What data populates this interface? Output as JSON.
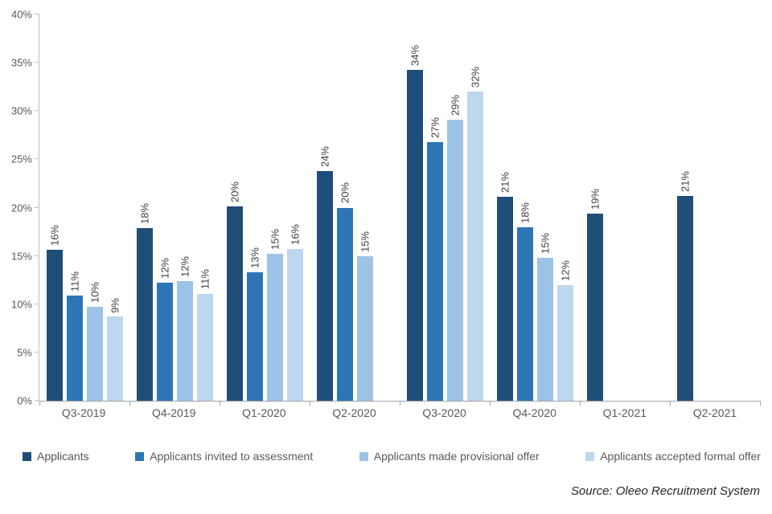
{
  "chart_data": {
    "type": "bar",
    "title": "",
    "categories": [
      "Q3-2019",
      "Q4-2019",
      "Q1-2020",
      "Q2-2020",
      "Q3-2020",
      "Q4-2020",
      "Q1-2021",
      "Q2-2021"
    ],
    "series": [
      {
        "name": "Applicants",
        "color": "#1F4E79",
        "values": [
          15.6,
          17.9,
          20.1,
          23.8,
          34.3,
          21.1,
          19.4,
          21.2
        ],
        "labels": [
          "16%",
          "18%",
          "20%",
          "24%",
          "34%",
          "21%",
          "19%",
          "21%"
        ]
      },
      {
        "name": "Applicants invited to assessment",
        "color": "#2E75B6",
        "values": [
          10.9,
          12.2,
          13.3,
          20.0,
          26.8,
          18.0,
          null,
          null
        ],
        "labels": [
          "11%",
          "12%",
          "13%",
          "20%",
          "27%",
          "18%",
          "",
          ""
        ]
      },
      {
        "name": "Applicants made provisional offer",
        "color": "#9DC3E6",
        "values": [
          9.7,
          12.4,
          15.2,
          15.0,
          29.1,
          14.8,
          null,
          null
        ],
        "labels": [
          "10%",
          "12%",
          "15%",
          "15%",
          "29%",
          "15%",
          "",
          ""
        ]
      },
      {
        "name": "Applicants accepted formal offer",
        "color": "#BDD7EE",
        "values": [
          8.7,
          11.1,
          15.7,
          null,
          32.0,
          12.0,
          null,
          null
        ],
        "labels": [
          "9%",
          "11%",
          "16%",
          "",
          "32%",
          "12%",
          "",
          ""
        ]
      }
    ],
    "xlabel": "",
    "ylabel": "",
    "ylim": [
      0,
      40
    ],
    "ytick_step": 5,
    "ytick_labels": [
      "0%",
      "5%",
      "10%",
      "15%",
      "20%",
      "25%",
      "30%",
      "35%",
      "40%"
    ],
    "grid": false,
    "legend_position": "bottom",
    "axis_line_color": "#A6A6A6",
    "tick_label_color": "#595959",
    "data_label_color": "#404040",
    "source": "Source: Oleeo Recruitment System"
  }
}
